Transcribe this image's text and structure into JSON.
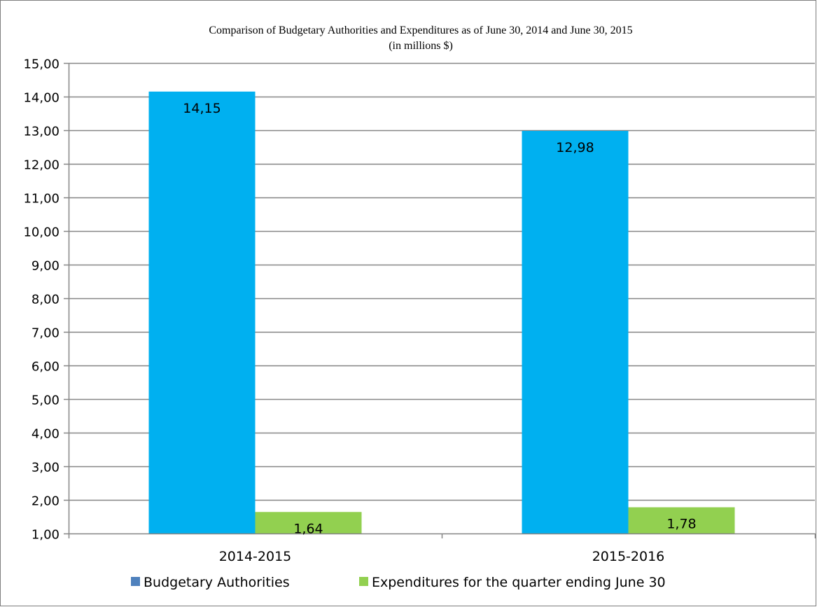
{
  "chart_data": {
    "type": "bar",
    "title": "Comparison of Budgetary Authorities and Expenditures as of June 30, 2014 and June 30, 2015",
    "subtitle": "(in millions $)",
    "categories": [
      "2014-2015",
      "2015-2016"
    ],
    "series": [
      {
        "name": "Budgetary Authorities",
        "values": [
          14.15,
          12.98
        ],
        "value_labels": [
          "14,15",
          "12,98"
        ],
        "bar_color": "#00B0F0",
        "legend_color": "#4F81BD"
      },
      {
        "name": "Expenditures for the quarter ending June 30",
        "values": [
          1.64,
          1.78
        ],
        "value_labels": [
          "1,64",
          "1,78"
        ],
        "bar_color": "#92D050",
        "legend_color": "#92D050"
      }
    ],
    "ylim": [
      1,
      15
    ],
    "yticks": [
      1,
      2,
      3,
      4,
      5,
      6,
      7,
      8,
      9,
      10,
      11,
      12,
      13,
      14,
      15
    ],
    "ytick_labels": [
      "1,00",
      "2,00",
      "3,00",
      "4,00",
      "5,00",
      "6,00",
      "7,00",
      "8,00",
      "9,00",
      "10,00",
      "11,00",
      "12,00",
      "13,00",
      "14,00",
      "15,00"
    ],
    "grid": true,
    "legend": "bottom",
    "gridline_color": "#868686",
    "axis_color": "#868686"
  }
}
